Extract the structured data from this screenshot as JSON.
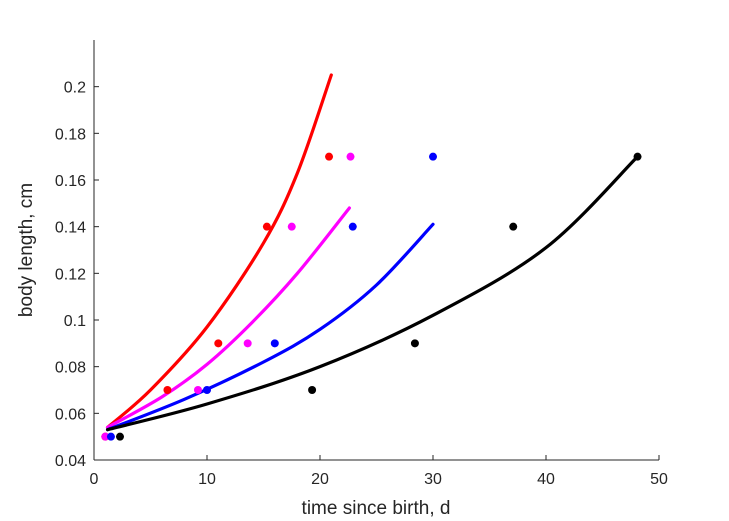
{
  "chart_data": {
    "type": "scatter",
    "title": "",
    "xlabel": "time since birth, d",
    "ylabel": "body length, cm",
    "xlim": [
      0,
      50
    ],
    "ylim": [
      0.04,
      0.22
    ],
    "xticks": [
      0,
      10,
      20,
      30,
      40,
      50
    ],
    "yticks": [
      0.04,
      0.06,
      0.08,
      0.1,
      0.12,
      0.14,
      0.16,
      0.18,
      0.2
    ],
    "xtick_labels": [
      "0",
      "10",
      "20",
      "30",
      "40",
      "50"
    ],
    "ytick_labels": [
      "0.04",
      "0.06",
      "0.08",
      "0.1",
      "0.12",
      "0.14",
      "0.16",
      "0.18",
      "0.2"
    ],
    "grid": false,
    "legend": "none",
    "series": [
      {
        "color": "#ff0000",
        "points": {
          "x": [
            1.0,
            6.5,
            11.0,
            15.3,
            20.8
          ],
          "y": [
            0.05,
            0.07,
            0.09,
            0.14,
            0.17
          ]
        },
        "curve": {
          "x": [
            1.2,
            5,
            10,
            15,
            18,
            21
          ],
          "y": [
            0.054,
            0.07,
            0.097,
            0.133,
            0.163,
            0.205
          ]
        }
      },
      {
        "color": "#ff00ff",
        "points": {
          "x": [
            1.0,
            9.2,
            13.6,
            17.5,
            22.7
          ],
          "y": [
            0.05,
            0.07,
            0.09,
            0.14,
            0.17
          ]
        },
        "curve": {
          "x": [
            1.2,
            6,
            10,
            14,
            18,
            22.6
          ],
          "y": [
            0.054,
            0.067,
            0.081,
            0.099,
            0.12,
            0.148
          ]
        }
      },
      {
        "color": "#0000ff",
        "points": {
          "x": [
            1.5,
            10.0,
            16.0,
            22.9,
            30.0
          ],
          "y": [
            0.05,
            0.07,
            0.09,
            0.14,
            0.17
          ]
        },
        "curve": {
          "x": [
            1.2,
            8,
            15,
            20,
            25,
            30
          ],
          "y": [
            0.053,
            0.066,
            0.082,
            0.096,
            0.115,
            0.141
          ]
        }
      },
      {
        "color": "#000000",
        "points": {
          "x": [
            2.3,
            19.3,
            28.4,
            37.1,
            48.1
          ],
          "y": [
            0.05,
            0.07,
            0.09,
            0.14,
            0.17
          ]
        },
        "curve": {
          "x": [
            1.2,
            10,
            20,
            30,
            40,
            48.1
          ],
          "y": [
            0.053,
            0.064,
            0.08,
            0.102,
            0.131,
            0.17
          ]
        }
      }
    ]
  }
}
